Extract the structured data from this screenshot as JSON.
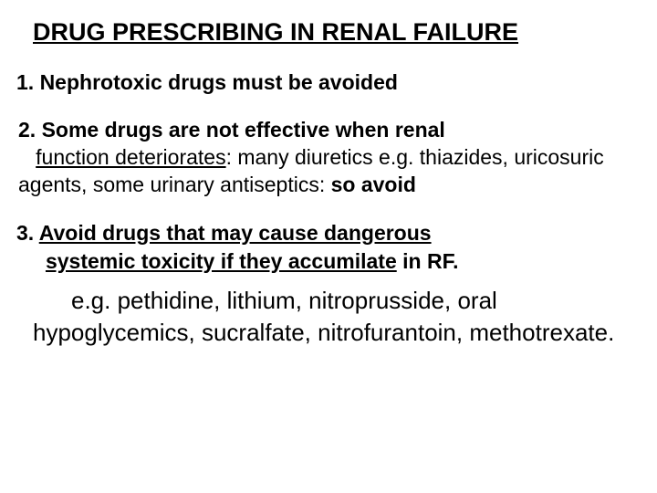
{
  "title": "DRUG PRESCRIBING IN RENAL FAILURE",
  "section1": "1. Nephrotoxic drugs must be avoided",
  "section2": {
    "bold_lead": "2. Some drugs are not effective when renal ",
    "underlined": "function deteriorates",
    "rest": ": many diuretics e.g. thiazides, uricosuric  agents, some urinary antiseptics: ",
    "tail_bold": "so avoid"
  },
  "section3": {
    "prefix": "3.  ",
    "underlined1": "Avoid drugs that may cause dangerous",
    "underlined2": "systemic toxicity if they accumilate",
    "plain_tail": " in RF."
  },
  "examples": {
    "line1": "e.g. pethidine, lithium, nitroprusside, oral",
    "line2": "hypoglycemics, sucralfate, nitrofurantoin, methotrexate."
  }
}
